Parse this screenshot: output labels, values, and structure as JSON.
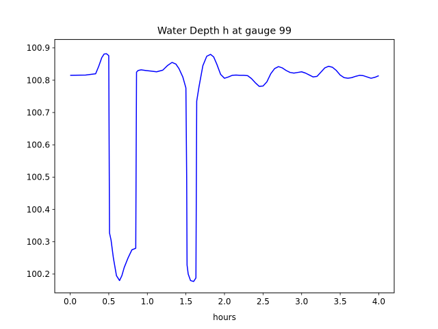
{
  "chart_data": {
    "type": "line",
    "title": "Water Depth h at gauge 99",
    "xlabel": "hours",
    "ylabel": "",
    "xlim": [
      -0.2,
      4.2
    ],
    "ylim": [
      100.142,
      100.926
    ],
    "xticks": [
      0.0,
      0.5,
      1.0,
      1.5,
      2.0,
      2.5,
      3.0,
      3.5,
      4.0
    ],
    "xtick_labels": [
      "0.0",
      "0.5",
      "1.0",
      "1.5",
      "2.0",
      "2.5",
      "3.0",
      "3.5",
      "4.0"
    ],
    "yticks": [
      100.2,
      100.3,
      100.4,
      100.5,
      100.6,
      100.7,
      100.8,
      100.9
    ],
    "ytick_labels": [
      "100.2",
      "100.3",
      "100.4",
      "100.5",
      "100.6",
      "100.7",
      "100.8",
      "100.9"
    ],
    "grid": false,
    "series": [
      {
        "color": "#0000ff",
        "x": [
          0.0,
          0.2,
          0.33,
          0.37,
          0.41,
          0.44,
          0.47,
          0.5,
          0.505,
          0.51,
          0.53,
          0.56,
          0.6,
          0.64,
          0.67,
          0.7,
          0.75,
          0.8,
          0.85,
          0.86,
          0.88,
          0.92,
          0.98,
          1.05,
          1.12,
          1.2,
          1.26,
          1.32,
          1.37,
          1.41,
          1.46,
          1.5,
          1.51,
          1.515,
          1.53,
          1.56,
          1.6,
          1.63,
          1.64,
          1.67,
          1.72,
          1.77,
          1.82,
          1.86,
          1.9,
          1.95,
          2.0,
          2.05,
          2.1,
          2.15,
          2.2,
          2.25,
          2.3,
          2.35,
          2.4,
          2.45,
          2.5,
          2.55,
          2.6,
          2.65,
          2.7,
          2.75,
          2.8,
          2.85,
          2.9,
          2.95,
          3.0,
          3.05,
          3.1,
          3.15,
          3.2,
          3.25,
          3.3,
          3.35,
          3.4,
          3.45,
          3.5,
          3.55,
          3.6,
          3.65,
          3.7,
          3.75,
          3.8,
          3.85,
          3.9,
          3.95,
          4.0
        ],
        "y": [
          100.815,
          100.816,
          100.82,
          100.843,
          100.87,
          100.881,
          100.882,
          100.876,
          100.6,
          100.327,
          100.305,
          100.25,
          100.195,
          100.18,
          100.195,
          100.22,
          100.25,
          100.275,
          100.28,
          100.825,
          100.83,
          100.832,
          100.83,
          100.828,
          100.826,
          100.831,
          100.845,
          100.855,
          100.85,
          100.836,
          100.81,
          100.776,
          100.5,
          100.228,
          100.2,
          100.18,
          100.177,
          100.188,
          100.735,
          100.78,
          100.845,
          100.874,
          100.88,
          100.872,
          100.85,
          100.818,
          100.806,
          100.81,
          100.815,
          100.816,
          100.815,
          100.815,
          100.814,
          100.805,
          100.792,
          100.781,
          100.782,
          100.795,
          100.82,
          100.836,
          100.842,
          100.838,
          100.83,
          100.824,
          100.822,
          100.824,
          100.826,
          100.822,
          100.816,
          100.81,
          100.812,
          100.825,
          100.838,
          100.843,
          100.84,
          100.83,
          100.816,
          100.808,
          100.806,
          100.808,
          100.812,
          100.815,
          100.814,
          100.81,
          100.806,
          100.809,
          100.814
        ]
      }
    ]
  }
}
